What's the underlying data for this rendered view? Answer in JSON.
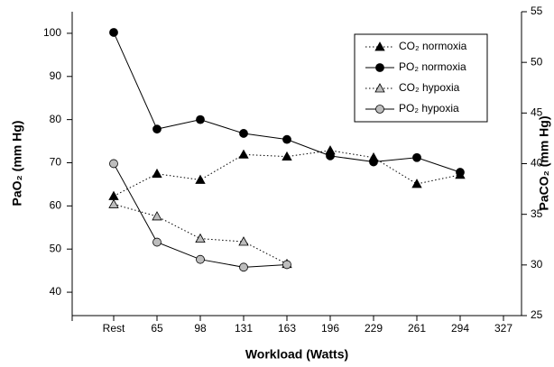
{
  "chart_data": {
    "type": "line",
    "xlabel": "Workload (Watts)",
    "ylabel": "PaO₂ (mm Hg)",
    "y2label": "PaCO₂ (mm Hg)",
    "categories": [
      "Rest",
      "65",
      "98",
      "131",
      "163",
      "196",
      "229",
      "261",
      "294",
      "327"
    ],
    "ylim": [
      35,
      105
    ],
    "yticks": [
      40,
      50,
      60,
      70,
      80,
      90,
      100
    ],
    "y2lim": [
      25,
      55
    ],
    "y2ticks": [
      25,
      30,
      35,
      40,
      45,
      50,
      55
    ],
    "legend": "upper right",
    "series": [
      {
        "name": "CO₂ normoxia",
        "axis": "y2",
        "color": "#000000",
        "marker": "triangle",
        "dash": "dotted",
        "values": [
          36.8,
          39.0,
          38.4,
          40.9,
          40.7,
          41.3,
          40.6,
          38.0,
          38.9,
          null
        ]
      },
      {
        "name": "PO₂ normoxia",
        "color": "#000000",
        "marker": "circle",
        "dash": "solid",
        "values": [
          100.2,
          77.8,
          80.0,
          76.8,
          75.4,
          71.6,
          70.2,
          71.2,
          67.8,
          null
        ]
      },
      {
        "name": "CO₂ hypoxia",
        "axis": "y2",
        "color": "#bdbdbd",
        "marker": "triangle",
        "dash": "dotted",
        "values": [
          36.0,
          34.8,
          32.6,
          32.3,
          30.1,
          null,
          null,
          null,
          null,
          null
        ]
      },
      {
        "name": "PO₂ hypoxia",
        "color": "#bdbdbd",
        "marker": "circle",
        "dash": "solid",
        "values": [
          69.8,
          51.6,
          47.6,
          45.8,
          46.4,
          null,
          null,
          null,
          null,
          null
        ]
      }
    ]
  }
}
